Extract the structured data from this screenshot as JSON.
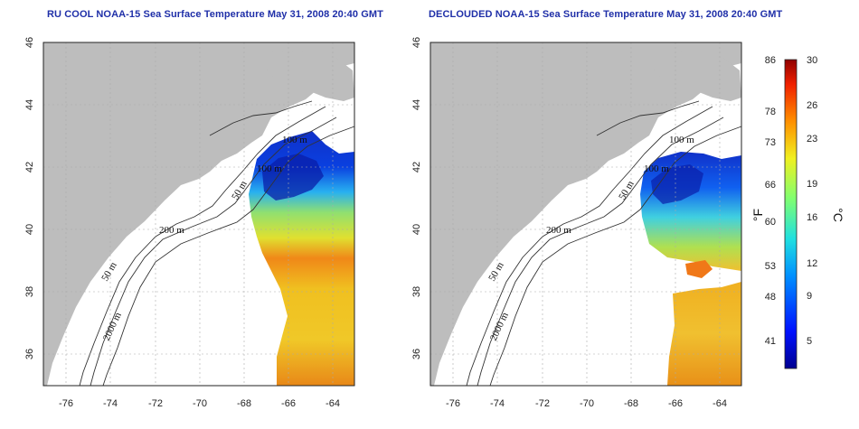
{
  "panels": [
    {
      "id": "left",
      "title": "RU COOL NOAA-15 Sea Surface Temperature May 31, 2008 20:40 GMT",
      "contour_labels": [
        "100 m",
        "100 m",
        "50 m",
        "200 m",
        "50 m",
        "2000 m"
      ]
    },
    {
      "id": "right",
      "title": "DECLOUDED NOAA-15 Sea Surface Temperature May 31, 2008 20:40 GMT",
      "contour_labels": [
        "100 m",
        "100 m",
        "50 m",
        "200 m",
        "50 m",
        "2000 m"
      ]
    }
  ],
  "axes": {
    "x_ticks": [
      "-76",
      "-74",
      "-72",
      "-70",
      "-68",
      "-66",
      "-64"
    ],
    "y_ticks": [
      "46",
      "44",
      "42",
      "40",
      "38",
      "36"
    ],
    "x_range": [
      -77,
      -63
    ],
    "y_range": [
      35,
      46
    ],
    "grid": "dotted"
  },
  "colorbar": {
    "fahrenheit_ticks": [
      "86",
      "78",
      "73",
      "66",
      "60",
      "53",
      "48",
      "41"
    ],
    "celsius_ticks": [
      "30",
      "26",
      "23",
      "19",
      "16",
      "12",
      "9",
      "5"
    ],
    "unit_f": "°F",
    "unit_c": "°C",
    "range_c": [
      2,
      30
    ]
  },
  "colors": {
    "land": "#bdbdbd",
    "ocean": "#ffffff",
    "title": "#1f2fa8"
  }
}
